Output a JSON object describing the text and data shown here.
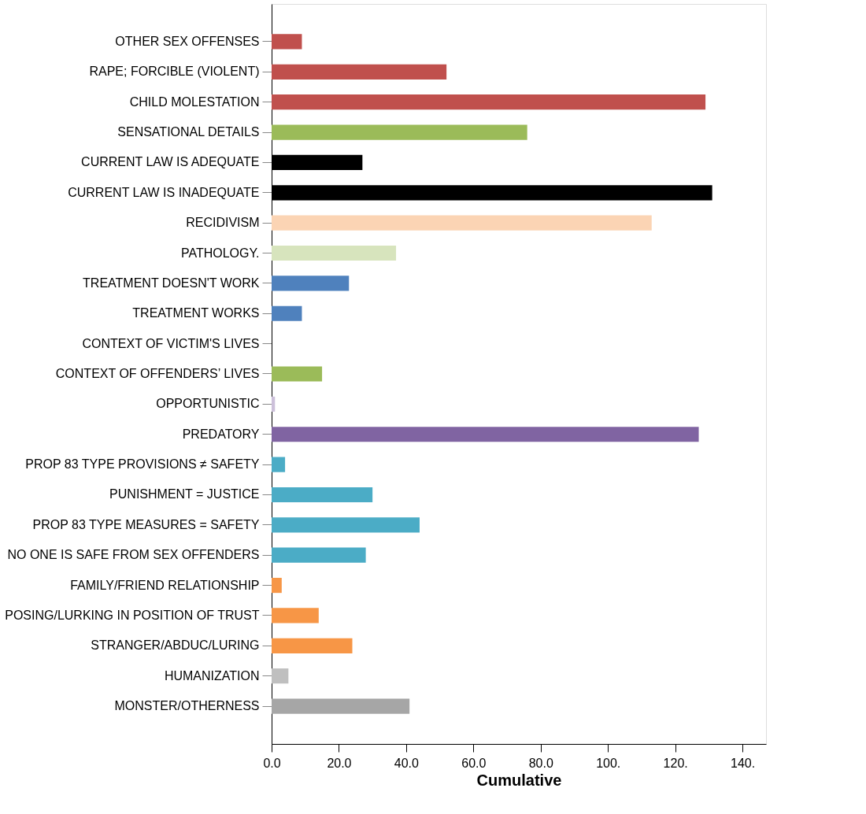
{
  "chart_data": {
    "type": "bar",
    "orientation": "horizontal",
    "xlabel": "Cumulative",
    "categories": [
      "OTHER SEX OFFENSES",
      "RAPE; FORCIBLE (VIOLENT)",
      "CHILD MOLESTATION",
      "SENSATIONAL  DETAILS",
      "CURRENT LAW IS ADEQUATE",
      "CURRENT LAW IS INADEQUATE",
      "RECIDIVISM",
      "PATHOLOGY.",
      "TREATMENT DOESN'T WORK",
      "TREATMENT WORKS",
      "CONTEXT OF VICTIM'S LIVES",
      "CONTEXT OF OFFENDERS’ LIVES",
      "OPPORTUNISTIC",
      "PREDATORY",
      "PROP 83 TYPE PROVISIONS ≠ SAFETY",
      "PUNISHMENT = JUSTICE",
      "PROP 83 TYPE MEASURES = SAFETY",
      "NO ONE IS SAFE FROM SEX OFFENDERS",
      "FAMILY/FRIEND RELATIONSHIP",
      "POSING/LURKING IN POSITION OF TRUST",
      "STRANGER/ABDUC/LURING",
      "HUMANIZATION",
      "MONSTER/OTHERNESS"
    ],
    "values": [
      9,
      52,
      129,
      76,
      27,
      131,
      113,
      37,
      23,
      9,
      0,
      15,
      1,
      127,
      4,
      30,
      44,
      28,
      3,
      14,
      24,
      5,
      41
    ],
    "colors": [
      "#c0504d",
      "#c0504d",
      "#c0504d",
      "#9bbb59",
      "#000000",
      "#000000",
      "#fbd4b4",
      "#d7e4bd",
      "#4f81bd",
      "#4f81bd",
      "#4f81bd",
      "#9bbb59",
      "#ccc0da",
      "#8064a2",
      "#4bacc6",
      "#4bacc6",
      "#4bacc6",
      "#4bacc6",
      "#f79646",
      "#f79646",
      "#f79646",
      "#bfbfbf",
      "#a6a6a6"
    ],
    "xlim": [
      0,
      147
    ],
    "xticks": [
      {
        "value": 0,
        "label": "0.0"
      },
      {
        "value": 20,
        "label": "20.0"
      },
      {
        "value": 40,
        "label": "40.0"
      },
      {
        "value": 60,
        "label": "60.0"
      },
      {
        "value": 80,
        "label": "80.0"
      },
      {
        "value": 100,
        "label": "100."
      },
      {
        "value": 120,
        "label": "120."
      },
      {
        "value": 140,
        "label": "140."
      }
    ],
    "grid": false,
    "legend": false
  }
}
